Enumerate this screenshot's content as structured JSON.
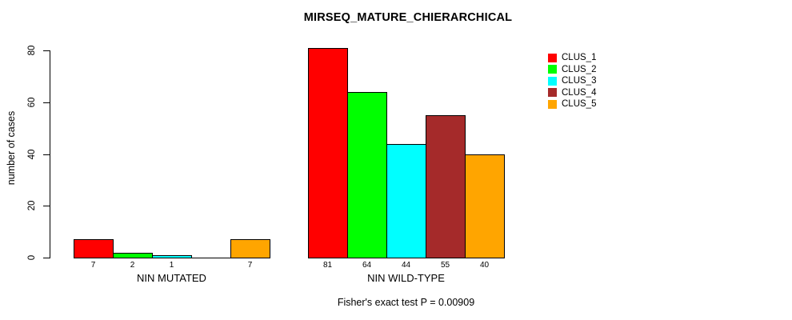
{
  "chart_data": {
    "type": "bar",
    "title": "MIRSEQ_MATURE_CHIERARCHICAL",
    "ylabel": "number of cases",
    "xlabel": "",
    "ylim": [
      0,
      80
    ],
    "yticks": [
      0,
      20,
      40,
      60,
      80
    ],
    "grid": false,
    "legend_position": "top-right",
    "legend": [
      {
        "name": "CLUS_1",
        "color": "#ff0000"
      },
      {
        "name": "CLUS_2",
        "color": "#00ff00"
      },
      {
        "name": "CLUS_3",
        "color": "#00ffff"
      },
      {
        "name": "CLUS_4",
        "color": "#a52a2a"
      },
      {
        "name": "CLUS_5",
        "color": "#ffa500"
      }
    ],
    "groups": [
      {
        "label": "NIN MUTATED",
        "bars": [
          {
            "series": "CLUS_1",
            "value": 7,
            "label": "7"
          },
          {
            "series": "CLUS_2",
            "value": 2,
            "label": "2"
          },
          {
            "series": "CLUS_3",
            "value": 1,
            "label": "1"
          },
          {
            "series": "CLUS_4",
            "value": null,
            "label": ""
          },
          {
            "series": "CLUS_5",
            "value": 7,
            "label": "7"
          }
        ]
      },
      {
        "label": "NIN WILD-TYPE",
        "bars": [
          {
            "series": "CLUS_1",
            "value": 81,
            "label": "81"
          },
          {
            "series": "CLUS_2",
            "value": 64,
            "label": "64"
          },
          {
            "series": "CLUS_3",
            "value": 44,
            "label": "44"
          },
          {
            "series": "CLUS_4",
            "value": 55,
            "label": "55"
          },
          {
            "series": "CLUS_5",
            "value": 40,
            "label": "40"
          }
        ]
      }
    ],
    "annotation": "Fisher's exact test P = 0.00909",
    "colors": {
      "background": "#ffffff",
      "axis": "#000000",
      "bar_border": "#000000"
    }
  }
}
